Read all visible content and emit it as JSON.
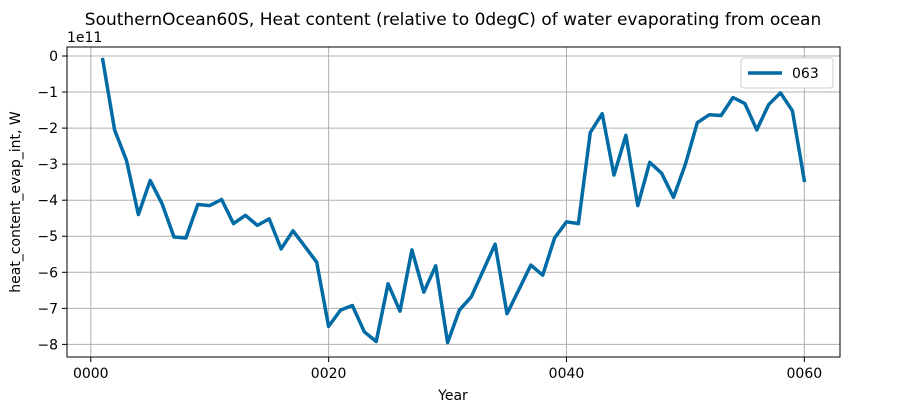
{
  "chart_data": {
    "type": "line",
    "title": "SouthernOcean60S, Heat content (relative to 0degC) of water evaporating from ocean",
    "xlabel": "Year",
    "ylabel": "heat_content_evap_int, W",
    "y_offset_text": "1e11",
    "xlim": [
      -2,
      63
    ],
    "ylim": [
      -8.35,
      0.25
    ],
    "x_ticks": [
      {
        "value": 0,
        "label": "0000"
      },
      {
        "value": 20,
        "label": "0020"
      },
      {
        "value": 40,
        "label": "0040"
      },
      {
        "value": 60,
        "label": "0060"
      }
    ],
    "y_ticks": [
      {
        "value": 0,
        "label": "0"
      },
      {
        "value": -1,
        "label": "−1"
      },
      {
        "value": -2,
        "label": "−2"
      },
      {
        "value": -3,
        "label": "−3"
      },
      {
        "value": -4,
        "label": "−4"
      },
      {
        "value": -5,
        "label": "−5"
      },
      {
        "value": -6,
        "label": "−6"
      },
      {
        "value": -7,
        "label": "−7"
      },
      {
        "value": -8,
        "label": "−8"
      }
    ],
    "grid": true,
    "legend": "top-right",
    "series": [
      {
        "name": "063",
        "color": "#006ba4",
        "x": [
          1,
          2,
          3,
          4,
          5,
          6,
          7,
          8,
          9,
          10,
          11,
          12,
          13,
          14,
          15,
          16,
          17,
          18,
          19,
          20,
          21,
          22,
          23,
          24,
          25,
          26,
          27,
          28,
          29,
          30,
          31,
          32,
          33,
          34,
          35,
          36,
          37,
          38,
          39,
          40,
          41,
          42,
          43,
          44,
          45,
          46,
          47,
          48,
          49,
          50,
          51,
          52,
          53,
          54,
          55,
          56,
          57,
          58,
          59,
          60
        ],
        "y": [
          -0.1,
          -2.05,
          -2.9,
          -4.4,
          -3.45,
          -4.1,
          -5.02,
          -5.05,
          -4.12,
          -4.15,
          -3.98,
          -4.65,
          -4.42,
          -4.7,
          -4.52,
          -5.35,
          -4.85,
          -5.28,
          -5.72,
          -7.5,
          -7.05,
          -6.92,
          -7.65,
          -7.92,
          -6.32,
          -7.08,
          -5.38,
          -6.55,
          -5.82,
          -7.95,
          -7.05,
          -6.68,
          -5.95,
          -5.22,
          -7.15,
          -6.48,
          -5.8,
          -6.08,
          -5.05,
          -4.6,
          -4.65,
          -2.12,
          -1.6,
          -3.3,
          -2.2,
          -4.15,
          -2.95,
          -3.25,
          -3.92,
          -3.0,
          -1.85,
          -1.63,
          -1.65,
          -1.15,
          -1.32,
          -2.05,
          -1.35,
          -1.02,
          -1.52,
          -3.45
        ]
      }
    ]
  }
}
